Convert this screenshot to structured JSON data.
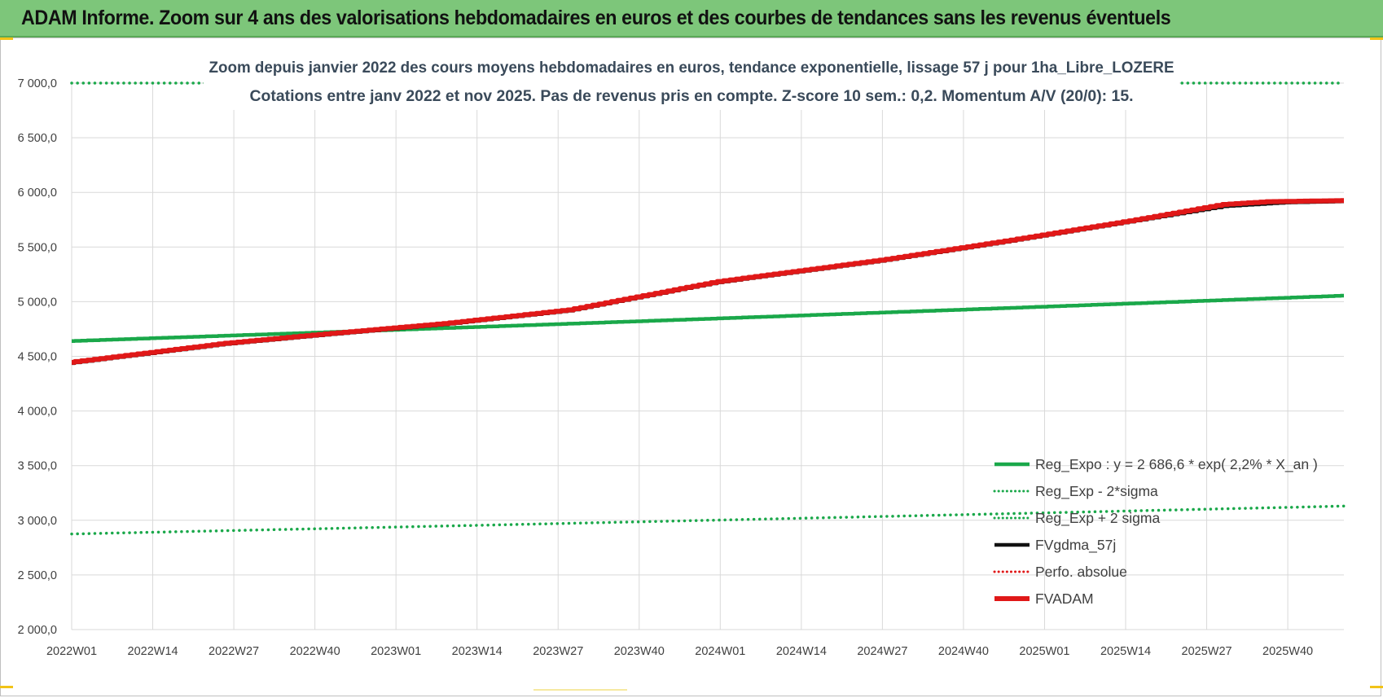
{
  "banner": {
    "title": "ADAM Informe. Zoom sur 4 ans des valorisations hebdomadaires en euros et des courbes de tendances sans les revenus éventuels"
  },
  "chart_data": {
    "type": "line",
    "title": "Zoom depuis janvier 2022 des cours moyens hebdomadaires en euros, tendance exponentielle, lissage 57 j pour 1ha_Libre_LOZERE",
    "subtitle": "Cotations entre janv 2022 et nov 2025. Pas de revenus pris en compte. Z-score 10 sem.: 0,2. Momentum A/V (20/0): 15.",
    "xlabel": "",
    "ylabel": "",
    "ylim": [
      2000,
      7000
    ],
    "yticks": [
      "2 000,0",
      "2 500,0",
      "3 000,0",
      "3 500,0",
      "4 000,0",
      "4 500,0",
      "5 000,0",
      "5 500,0",
      "6 000,0",
      "6 500,0",
      "7 000,0"
    ],
    "x_tick_labels": [
      "2022W01",
      "2022W14",
      "2022W27",
      "2022W40",
      "2023W01",
      "2023W14",
      "2023W27",
      "2023W40",
      "2024W01",
      "2024W14",
      "2024W27",
      "2024W40",
      "2025W01",
      "2025W14",
      "2025W27",
      "2025W40"
    ],
    "weeks_count": 205,
    "grid": true,
    "legend_position": "bottom-right",
    "series": [
      {
        "name": "Reg_Expo : y = 2 686,6 * exp( 2,2% *  X_an )",
        "color": "#1aa84a",
        "style": "solid",
        "start": 4640,
        "end": 5055,
        "model": "exponential"
      },
      {
        "name": "Reg_Exp - 2*sigma",
        "color": "#1aa84a",
        "style": "dotted",
        "start": 2875,
        "end": 3130,
        "model": "exponential"
      },
      {
        "name": "Reg_Exp + 2 sigma",
        "color": "#1aa84a",
        "style": "dotted",
        "start": 7000,
        "end": 7000,
        "model": "clipped-top"
      },
      {
        "name": "FVgdma_57j",
        "color": "#111111",
        "style": "solid",
        "keypoints": [
          [
            0,
            4445
          ],
          [
            25,
            4620
          ],
          [
            40,
            4700
          ],
          [
            60,
            4800
          ],
          [
            80,
            4925
          ],
          [
            104,
            5185
          ],
          [
            130,
            5380
          ],
          [
            150,
            5555
          ],
          [
            170,
            5740
          ],
          [
            185,
            5880
          ],
          [
            195,
            5915
          ],
          [
            204,
            5925
          ]
        ]
      },
      {
        "name": "Perfo. absolue",
        "color": "#e01818",
        "style": "dotted",
        "keypoints": []
      },
      {
        "name": "FVADAM",
        "color": "#e01818",
        "style": "solid",
        "keypoints": [
          [
            0,
            4445
          ],
          [
            25,
            4620
          ],
          [
            40,
            4700
          ],
          [
            60,
            4800
          ],
          [
            80,
            4925
          ],
          [
            104,
            5185
          ],
          [
            130,
            5380
          ],
          [
            150,
            5555
          ],
          [
            170,
            5740
          ],
          [
            185,
            5890
          ],
          [
            192,
            5915
          ],
          [
            204,
            5925
          ]
        ]
      }
    ]
  }
}
